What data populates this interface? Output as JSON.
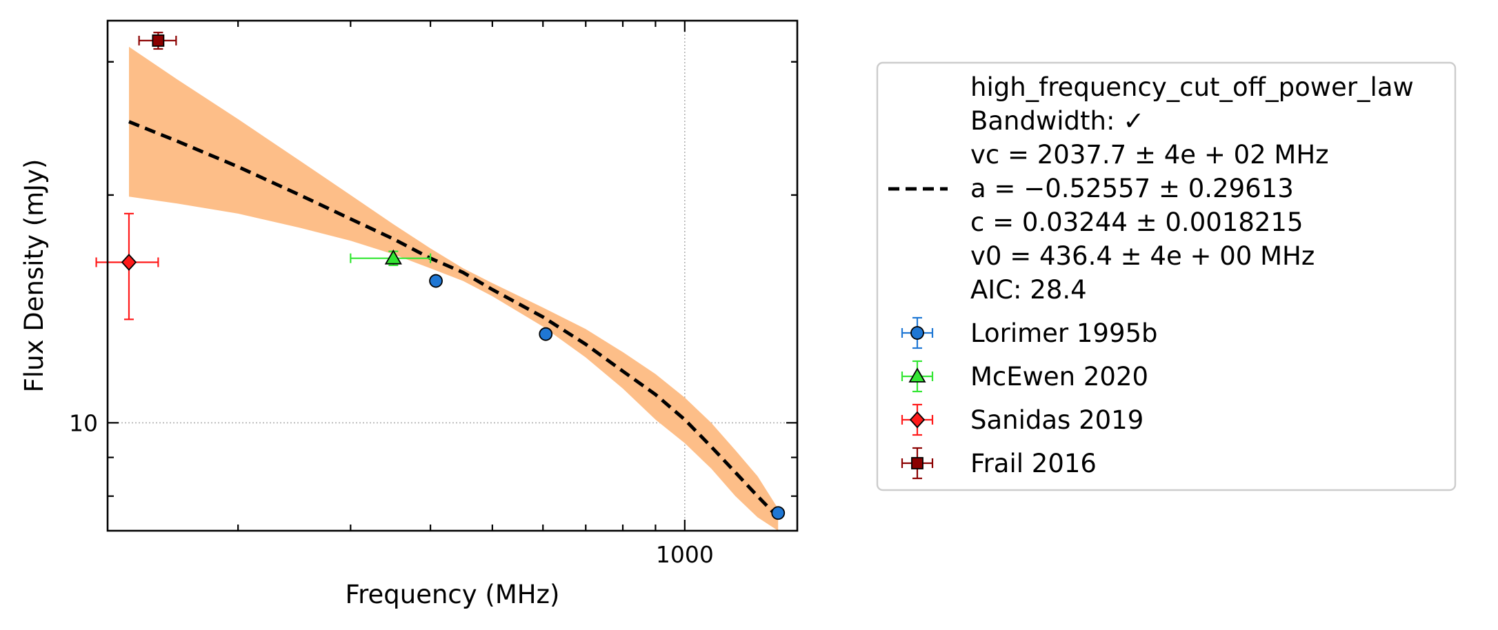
{
  "chart_data": {
    "type": "scatter",
    "xlabel": "Frequency (MHz)",
    "ylabel": "Flux Density (mJy)",
    "x_scale": "log",
    "y_scale": "log",
    "xlim": [
      125,
      1500
    ],
    "ylim": [
      7.2,
      34
    ],
    "x_ticks": [
      {
        "value": 1000,
        "label": "1000"
      }
    ],
    "y_ticks": [
      {
        "value": 10,
        "label": "10"
      }
    ],
    "grid": "dotted at labeled ticks",
    "legend_position": "outside-right",
    "model": {
      "name": "high_frequency_cut_off_power_law",
      "lines": [
        "high_frequency_cut_off_power_law",
        "Bandwidth: ✓",
        "vc = 2037.7 ± 4e + 02 MHz",
        "a = −0.52557 ± 0.29613",
        "c = 0.03244 ± 0.0018215",
        "v0 = 436.4 ± 4e + 00 MHz",
        "AIC: 28.4"
      ],
      "curve": {
        "x": [
          135,
          160,
          200,
          250,
          300,
          350,
          400,
          450,
          500,
          600,
          700,
          800,
          900,
          1000,
          1100,
          1200,
          1300,
          1400
        ],
        "y": [
          25.0,
          23.6,
          21.8,
          20.0,
          18.6,
          17.5,
          16.5,
          15.8,
          15.0,
          13.8,
          12.7,
          11.7,
          10.9,
          10.1,
          9.3,
          8.6,
          8.0,
          7.5
        ]
      },
      "band": {
        "x": [
          135,
          160,
          200,
          250,
          300,
          350,
          400,
          450,
          500,
          600,
          700,
          800,
          900,
          1000,
          1100,
          1200,
          1300,
          1400
        ],
        "upper": [
          31.4,
          28.5,
          25.2,
          22.2,
          20.0,
          18.3,
          17.0,
          16.0,
          15.3,
          14.2,
          13.3,
          12.4,
          11.6,
          10.8,
          10.0,
          9.2,
          8.5,
          7.7
        ],
        "lower": [
          19.9,
          19.5,
          18.9,
          18.1,
          17.4,
          16.7,
          16.0,
          15.4,
          14.7,
          13.4,
          12.2,
          11.1,
          10.1,
          9.4,
          8.7,
          8.0,
          7.5,
          7.2
        ]
      }
    },
    "series": [
      {
        "name": "Lorimer 1995b",
        "marker": "circle",
        "color": "#1f77d4",
        "points": [
          {
            "x": 408,
            "y": 15.4,
            "yerr": 0.15,
            "xerr": 4
          },
          {
            "x": 606,
            "y": 13.1,
            "yerr": 0.12,
            "xerr": 6
          },
          {
            "x": 1400,
            "y": 7.6,
            "yerr": 0.08,
            "xerr": 10
          }
        ]
      },
      {
        "name": "McEwen 2020",
        "marker": "triangle",
        "color": "#33e633",
        "points": [
          {
            "x": 350,
            "y": 16.5,
            "yerr": 0.35,
            "xerr": 50
          }
        ]
      },
      {
        "name": "Sanidas 2019",
        "marker": "diamond",
        "color": "#ff1a1a",
        "points": [
          {
            "x": 135,
            "y": 16.3,
            "yerr": 2.6,
            "xerr": 15
          }
        ]
      },
      {
        "name": "Frail 2016",
        "marker": "square",
        "color": "#8b0000",
        "points": [
          {
            "x": 150,
            "y": 32.0,
            "yerr": 0.8,
            "xerr": 10
          }
        ]
      }
    ],
    "colors": {
      "band": "#fdbe88",
      "curve": "#000000",
      "grid": "#b0b0b0"
    }
  }
}
